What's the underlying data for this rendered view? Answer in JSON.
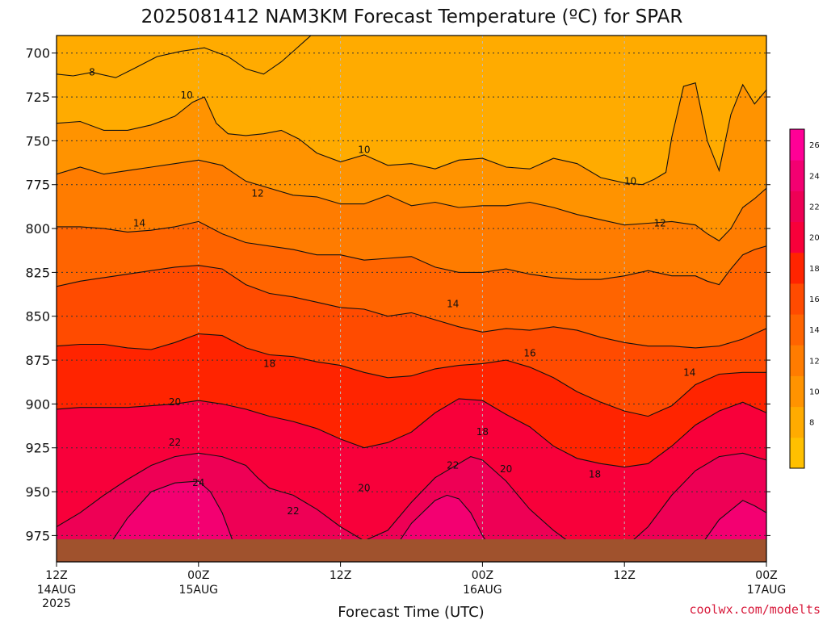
{
  "chart_data": {
    "type": "heatmap",
    "title": "2025081412 NAM3KM Forecast Temperature (ºC) for SPAR",
    "xlabel": "Forecast Time (UTC)",
    "ylabel": "",
    "credit": "coolwx.com/modelts",
    "y_axis": {
      "unit": "hPa",
      "inverted": true,
      "range": [
        990,
        690
      ],
      "ticks": [
        700,
        725,
        750,
        775,
        800,
        825,
        850,
        875,
        900,
        925,
        950,
        975
      ]
    },
    "x_axis": {
      "range_hours": [
        0,
        60
      ],
      "ticks": [
        {
          "hour": 0,
          "time": "12Z",
          "date": "14AUG",
          "year": "2025"
        },
        {
          "hour": 12,
          "time": "00Z",
          "date": "15AUG",
          "year": ""
        },
        {
          "hour": 24,
          "time": "12Z",
          "date": "",
          "year": ""
        },
        {
          "hour": 36,
          "time": "00Z",
          "date": "16AUG",
          "year": ""
        },
        {
          "hour": 48,
          "time": "12Z",
          "date": "",
          "year": ""
        },
        {
          "hour": 60,
          "time": "00Z",
          "date": "17AUG",
          "year": ""
        }
      ]
    },
    "grid": true,
    "colorbar": {
      "placement": "right",
      "levels": [
        6,
        8,
        10,
        12,
        14,
        16,
        18,
        20,
        22,
        24,
        26,
        28
      ],
      "tick_labels": [
        "8",
        "10",
        "12",
        "14",
        "16",
        "18",
        "20",
        "22",
        "24",
        "26"
      ],
      "colors": [
        "#ffc000",
        "#ffab00",
        "#ff9300",
        "#ff7c00",
        "#ff6400",
        "#ff4b00",
        "#ff2400",
        "#f8003a",
        "#ee0055",
        "#f30071",
        "#ff0096"
      ]
    },
    "ground_color": "#a0522d",
    "isotherms": [
      {
        "value": 8,
        "label": "8",
        "x": [
          0,
          1.4,
          3,
          5,
          6.5,
          8.5,
          10.5,
          12.5,
          14.5,
          16,
          17.5,
          19,
          20,
          21.5
        ],
        "y": [
          712,
          713,
          711,
          714,
          709,
          702,
          699,
          697,
          702,
          709,
          712,
          705,
          699,
          690
        ]
      },
      {
        "value": 10,
        "label": "10",
        "x": [
          0,
          2,
          4,
          6,
          8,
          10,
          11.5,
          12.5,
          13.5,
          14.5,
          16,
          17.5,
          19,
          20.5,
          22,
          24,
          26,
          28,
          30,
          32,
          34,
          36,
          38,
          40,
          42,
          44,
          46,
          48,
          49.5,
          50.5,
          51.5,
          52,
          53,
          54,
          55,
          56,
          57,
          58,
          59,
          60
        ],
        "y": [
          740,
          739,
          744,
          744,
          741,
          736,
          728,
          725,
          740,
          746,
          747,
          746,
          744,
          749,
          757,
          762,
          758,
          764,
          763,
          766,
          761,
          760,
          765,
          766,
          760,
          763,
          771,
          774,
          775,
          772,
          768,
          748,
          719,
          717,
          750,
          767,
          735,
          718,
          729,
          721
        ]
      },
      {
        "value": 12,
        "label": "12",
        "x": [
          0,
          2,
          4,
          6,
          8,
          10,
          12,
          14,
          16,
          18,
          20,
          22,
          24,
          26,
          28,
          30,
          32,
          34,
          36,
          38,
          40,
          42,
          44,
          46,
          48,
          50,
          52,
          54,
          55,
          56,
          57,
          58,
          59,
          60
        ],
        "y": [
          769,
          765,
          769,
          767,
          765,
          763,
          761,
          764,
          773,
          777,
          781,
          782,
          786,
          786,
          781,
          787,
          785,
          788,
          787,
          787,
          785,
          788,
          792,
          795,
          798,
          797,
          796,
          798,
          803,
          807,
          800,
          788,
          783,
          777
        ]
      },
      {
        "value": 14,
        "label": "14",
        "x": [
          0,
          2,
          4,
          6,
          8,
          10,
          12,
          14,
          16,
          18,
          20,
          22,
          24,
          26,
          28,
          30,
          32,
          34,
          36,
          38,
          40,
          42,
          44,
          46,
          48,
          50,
          52,
          54,
          55,
          56,
          57,
          58,
          59,
          60
        ],
        "y": [
          799,
          799,
          800,
          802,
          801,
          799,
          796,
          803,
          808,
          810,
          812,
          815,
          815,
          818,
          817,
          816,
          822,
          825,
          825,
          823,
          826,
          828,
          829,
          829,
          827,
          824,
          827,
          827,
          830,
          832,
          823,
          815,
          812,
          810
        ]
      },
      {
        "value": 16,
        "label": "16",
        "x": [
          0,
          2,
          4,
          6,
          8,
          10,
          12,
          14,
          16,
          18,
          20,
          22,
          24,
          26,
          28,
          30,
          32,
          34,
          36,
          38,
          40,
          42,
          44,
          46,
          48,
          50,
          52,
          54,
          56,
          58,
          60
        ],
        "y": [
          833,
          830,
          828,
          826,
          824,
          822,
          821,
          823,
          832,
          837,
          839,
          842,
          845,
          846,
          850,
          848,
          852,
          856,
          859,
          857,
          858,
          856,
          858,
          862,
          865,
          867,
          867,
          868,
          867,
          863,
          857
        ]
      },
      {
        "value": 18,
        "label": "18",
        "x": [
          0,
          2,
          4,
          6,
          8,
          10,
          12,
          14,
          16,
          18,
          20,
          22,
          24,
          26,
          28,
          30,
          32,
          34,
          36,
          38,
          40,
          42,
          44,
          46,
          48,
          50,
          52,
          54,
          56,
          58,
          60
        ],
        "y": [
          867,
          866,
          866,
          868,
          869,
          865,
          860,
          861,
          868,
          872,
          873,
          876,
          878,
          882,
          885,
          884,
          880,
          878,
          877,
          875,
          879,
          885,
          893,
          899,
          904,
          907,
          901,
          889,
          883,
          882,
          882
        ]
      },
      {
        "value": 20,
        "label": "20",
        "x": [
          0,
          2,
          4,
          6,
          8,
          10,
          12,
          14,
          16,
          18,
          20,
          22,
          24,
          26,
          28,
          30,
          32,
          34,
          36,
          38,
          40,
          42,
          44,
          46,
          48,
          50,
          52,
          54,
          56,
          58,
          60
        ],
        "y": [
          903,
          902,
          902,
          902,
          901,
          900,
          898,
          900,
          903,
          907,
          910,
          914,
          920,
          925,
          922,
          916,
          905,
          897,
          898,
          906,
          913,
          924,
          931,
          934,
          936,
          934,
          924,
          912,
          904,
          899,
          905
        ]
      },
      {
        "value": 22,
        "label": "22",
        "x": [
          0,
          2,
          4,
          6,
          8,
          10,
          12,
          14,
          16,
          17,
          18,
          19,
          20,
          22,
          24,
          26,
          28,
          30,
          32,
          34,
          35,
          36,
          38,
          40,
          42,
          44,
          46,
          48,
          50,
          52,
          54,
          56,
          58,
          60
        ],
        "y": [
          970,
          962,
          952,
          943,
          935,
          930,
          928,
          930,
          935,
          942,
          948,
          950,
          952,
          960,
          970,
          978,
          972,
          956,
          942,
          934,
          930,
          932,
          944,
          960,
          972,
          982,
          985,
          982,
          970,
          952,
          938,
          930,
          928,
          932
        ]
      },
      {
        "value": 24,
        "label": "24",
        "x": [
          4,
          5,
          6,
          8,
          10,
          12,
          13,
          14,
          15,
          28,
          29,
          30,
          32,
          33,
          34,
          35,
          36,
          37,
          54,
          56,
          58,
          59,
          60
        ],
        "y": [
          985,
          975,
          965,
          950,
          945,
          944,
          950,
          962,
          980,
          985,
          978,
          968,
          955,
          952,
          954,
          962,
          975,
          985,
          985,
          966,
          955,
          958,
          962
        ]
      }
    ],
    "annotations": [
      {
        "text": "8",
        "x": 3.0,
        "y": 711
      },
      {
        "text": "10",
        "x": 11.0,
        "y": 724
      },
      {
        "text": "10",
        "x": 26.0,
        "y": 755
      },
      {
        "text": "10",
        "x": 48.5,
        "y": 773
      },
      {
        "text": "12",
        "x": 17.0,
        "y": 780
      },
      {
        "text": "12",
        "x": 51.0,
        "y": 797
      },
      {
        "text": "14",
        "x": 7.0,
        "y": 797
      },
      {
        "text": "14",
        "x": 33.5,
        "y": 843
      },
      {
        "text": "14",
        "x": 53.5,
        "y": 882
      },
      {
        "text": "16",
        "x": 40.0,
        "y": 871
      },
      {
        "text": "18",
        "x": 18.0,
        "y": 877
      },
      {
        "text": "18",
        "x": 36.0,
        "y": 916
      },
      {
        "text": "18",
        "x": 45.5,
        "y": 940
      },
      {
        "text": "20",
        "x": 10.0,
        "y": 899
      },
      {
        "text": "20",
        "x": 26.0,
        "y": 948
      },
      {
        "text": "20",
        "x": 38.0,
        "y": 937
      },
      {
        "text": "22",
        "x": 10.0,
        "y": 922
      },
      {
        "text": "22",
        "x": 20.0,
        "y": 961
      },
      {
        "text": "22",
        "x": 33.5,
        "y": 935
      },
      {
        "text": "24",
        "x": 12.0,
        "y": 945
      }
    ]
  }
}
